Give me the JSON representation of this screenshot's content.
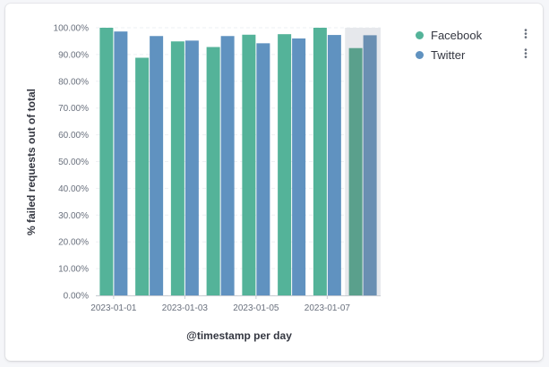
{
  "colors": {
    "facebook": "#54b399",
    "twitter": "#6092c0",
    "highlight": "#e6e8ec",
    "grid": "#eef0f3",
    "axis": "#c9ccd2"
  },
  "legend": {
    "items": [
      {
        "label": "Facebook",
        "color": "#54b399",
        "menu_icon": "more-vertical-icon"
      },
      {
        "label": "Twitter",
        "color": "#6092c0",
        "menu_icon": "more-vertical-icon"
      }
    ]
  },
  "chart_data": {
    "type": "bar",
    "xlabel": "@timestamp per day",
    "ylabel": "% failed requests out of total",
    "x_tick_labels": [
      "2023-01-01",
      "2023-01-03",
      "2023-01-05",
      "2023-01-07"
    ],
    "categories": [
      "2023-01-01",
      "2023-01-02",
      "2023-01-03",
      "2023-01-04",
      "2023-01-05",
      "2023-01-06",
      "2023-01-07",
      "2023-01-08"
    ],
    "series": [
      {
        "name": "Facebook",
        "color": "#54b399",
        "values": [
          100.0,
          88.8,
          94.9,
          92.8,
          97.4,
          97.6,
          100.0,
          92.4
        ]
      },
      {
        "name": "Twitter",
        "color": "#6092c0",
        "values": [
          98.6,
          96.9,
          95.2,
          96.9,
          94.2,
          96.0,
          97.3,
          97.2
        ]
      }
    ],
    "ylim": [
      0,
      100
    ],
    "y_ticks": [
      "0.00%",
      "10.00%",
      "20.00%",
      "30.00%",
      "40.00%",
      "50.00%",
      "60.00%",
      "70.00%",
      "80.00%",
      "90.00%",
      "100.00%"
    ],
    "highlighted_category": "2023-01-08",
    "grid": true,
    "legend_position": "top-right"
  }
}
